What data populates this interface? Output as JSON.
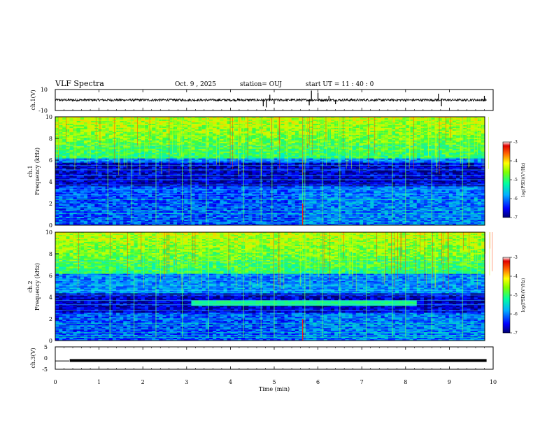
{
  "header": {
    "title": "VLF Spectra",
    "date": "Oct. 9 , 2025",
    "station": "station= OUJ",
    "start_ut": "start UT = 11 : 40 : 0"
  },
  "chart_data": [
    {
      "type": "line",
      "name": "ch1-waveform",
      "ylabel": "ch.1(V)",
      "ylim": [
        -10,
        10
      ],
      "y_tick_labels": [
        "10",
        "-10"
      ],
      "xlim": [
        0,
        10
      ],
      "baseline": 0,
      "noise_amplitude": 1.1,
      "spikes": [
        {
          "t": 4.75,
          "v": -6
        },
        {
          "t": 4.82,
          "v": -7
        },
        {
          "t": 4.9,
          "v": 5
        },
        {
          "t": 5.0,
          "v": -4
        },
        {
          "t": 5.8,
          "v": -5
        },
        {
          "t": 5.85,
          "v": 9
        },
        {
          "t": 6.0,
          "v": 7
        },
        {
          "t": 6.25,
          "v": 4
        },
        {
          "t": 6.4,
          "v": -4
        },
        {
          "t": 8.75,
          "v": 6
        },
        {
          "t": 8.82,
          "v": -6
        },
        {
          "t": 9.8,
          "v": 4
        }
      ]
    },
    {
      "type": "heatmap",
      "name": "ch1-spectrogram",
      "ylabel_line1": "ch.1",
      "ylabel_line2": "Frequency (kHz)",
      "xlim": [
        0,
        10
      ],
      "ylim": [
        0,
        10
      ],
      "y_ticks": [
        0,
        2,
        4,
        6,
        8,
        10
      ],
      "colorbar": {
        "label": "log(PSD)(V²/Hz)",
        "range": [
          -7,
          -3
        ],
        "ticks": [
          -3,
          -4,
          -5,
          -6,
          -7
        ]
      },
      "dark_band_khz": [
        3.6,
        5.8
      ],
      "step_change_min": 5.65,
      "emission_band_khz": null,
      "vertical_bursts_min": [
        1.2,
        1.75,
        2.3,
        2.9,
        3.1,
        3.45,
        4.3,
        4.7,
        4.95,
        5.65,
        5.7,
        6.1,
        6.5,
        7.7,
        8.0,
        8.6,
        9.3
      ]
    },
    {
      "type": "heatmap",
      "name": "ch2-spectrogram",
      "ylabel_line1": "ch.2",
      "ylabel_line2": "Frequency (kHz)",
      "xlim": [
        0,
        10
      ],
      "ylim": [
        0,
        10
      ],
      "y_ticks": [
        0,
        2,
        4,
        6,
        8,
        10
      ],
      "colorbar": {
        "label": "log(PSD)(V²/Hz)",
        "range": [
          -7,
          -3
        ],
        "ticks": [
          -3,
          -4,
          -5,
          -6,
          -7
        ]
      },
      "dark_band_khz": [
        2.6,
        4.4
      ],
      "step_change_min": 5.65,
      "emission_band_khz": [
        3.2,
        3.7
      ],
      "emission_span_min": [
        3.2,
        8.45
      ],
      "vertical_bursts_min": [
        1.25,
        1.8,
        2.3,
        2.9,
        3.5,
        4.3,
        4.7,
        5.0,
        5.7,
        6.1,
        6.5,
        7.1,
        7.7,
        8.0,
        8.6,
        9.3
      ]
    },
    {
      "type": "line",
      "name": "ch3-trace",
      "ylabel": "ch.3(V)",
      "ylim": [
        -5,
        5
      ],
      "y_tick_labels": [
        "5",
        "0",
        "-5"
      ],
      "xlim": [
        0,
        10
      ],
      "x": [
        0,
        0.32,
        0.33,
        9.85
      ],
      "y": [
        -1.3,
        -1.3,
        -1.1,
        -1.1
      ]
    }
  ],
  "x_axis": {
    "label": "Time (min)",
    "ticks": [
      "0",
      "1",
      "2",
      "3",
      "4",
      "5",
      "6",
      "7",
      "8",
      "9",
      "10"
    ]
  }
}
